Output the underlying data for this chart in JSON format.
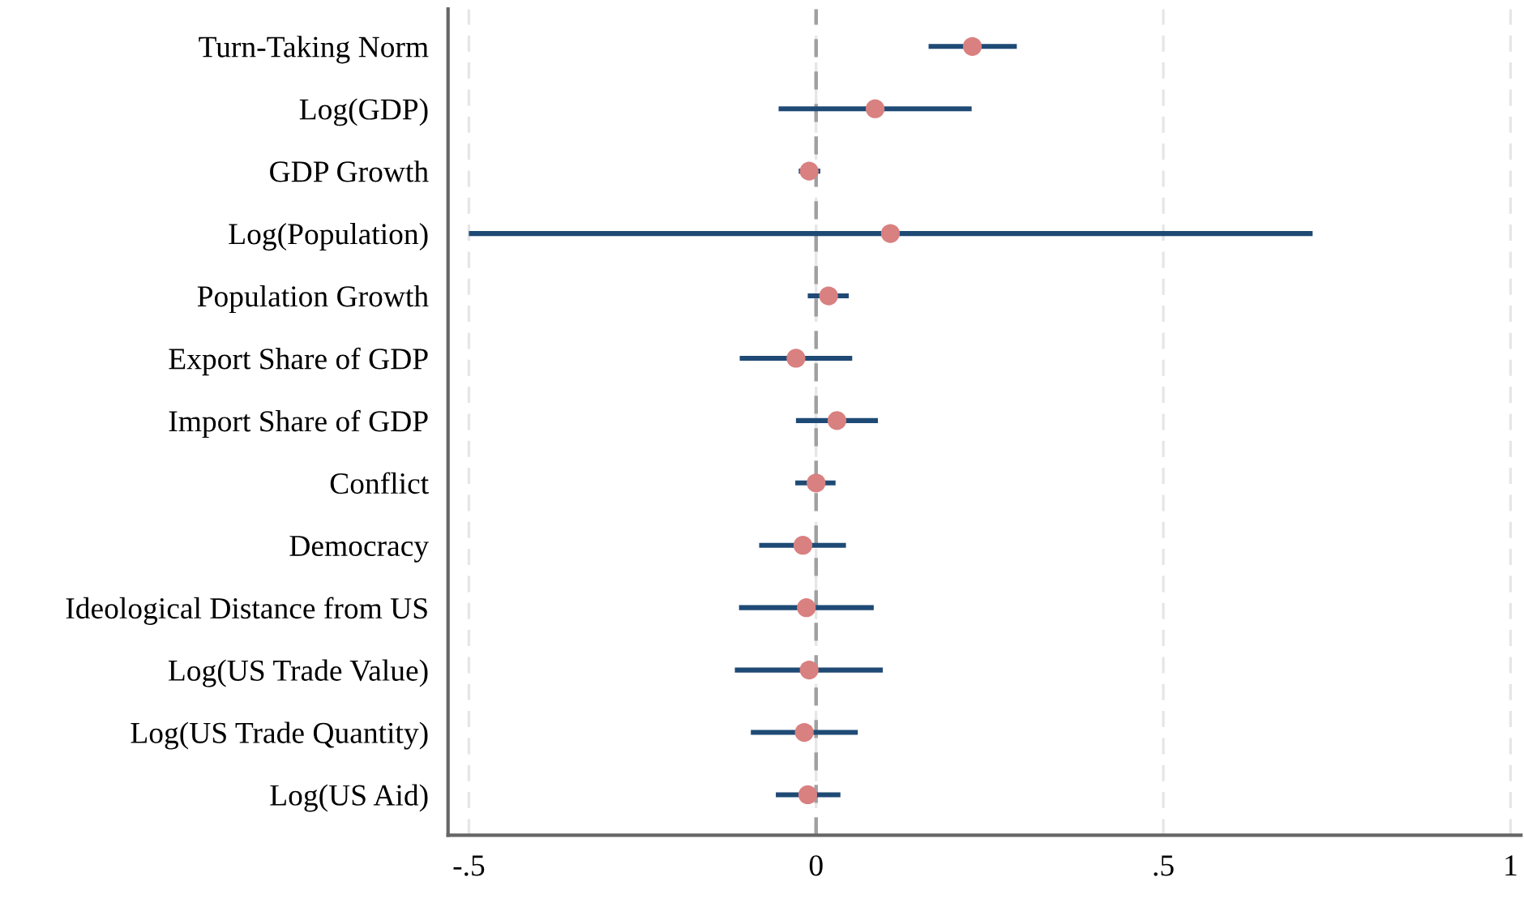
{
  "chart_data": {
    "type": "scatter",
    "orientation": "horizontal",
    "categories": [
      "Turn-Taking Norm",
      "Log(GDP)",
      "GDP Growth",
      "Log(Population)",
      "Population Growth",
      "Export Share of GDP",
      "Import Share of GDP",
      "Conflict",
      "Democracy",
      "Ideological Distance from US",
      "Log(US Trade Value)",
      "Log(US Trade Quantity)",
      "Log(US Aid)"
    ],
    "series": [
      {
        "color": "#d98080",
        "values": [
          0.225,
          0.085,
          -0.01,
          0.107,
          0.018,
          -0.029,
          0.03,
          0.0,
          -0.019,
          -0.014,
          -0.01,
          -0.017,
          -0.012
        ],
        "errors": [
          [
            0.162,
            0.289
          ],
          [
            -0.054,
            0.224
          ],
          [
            -0.025,
            0.006
          ],
          [
            -0.5,
            0.715
          ],
          [
            -0.012,
            0.047
          ],
          [
            -0.11,
            0.052
          ],
          [
            -0.029,
            0.089
          ],
          [
            -0.03,
            0.028
          ],
          [
            -0.082,
            0.043
          ],
          [
            -0.111,
            0.083
          ],
          [
            -0.117,
            0.096
          ],
          [
            -0.094,
            0.06
          ],
          [
            -0.058,
            0.035
          ]
        ]
      }
    ],
    "xlim": [
      -0.53,
      1.015
    ],
    "xticks": [
      {
        "value": -0.5,
        "label": "-.5"
      },
      0,
      {
        "value": 0.5,
        "label": ".5"
      },
      1
    ],
    "ref_lines": [
      {
        "axis": "x",
        "value": 0,
        "color": "#a0a0a0",
        "line_style": "dashed"
      }
    ],
    "grid": "x",
    "marker": "circle",
    "legend": false
  }
}
